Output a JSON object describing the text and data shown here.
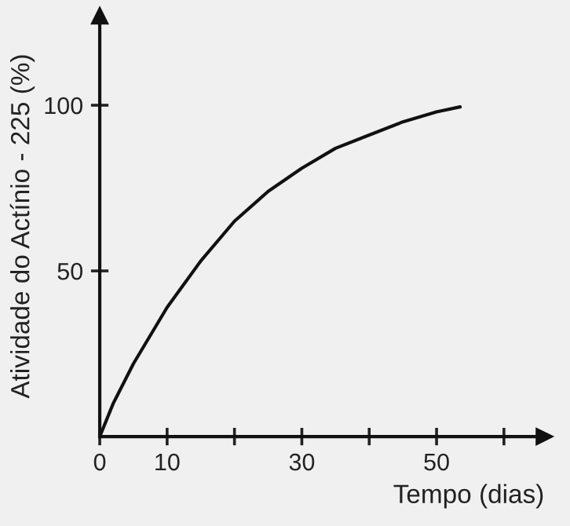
{
  "chart_data": {
    "type": "line",
    "xlabel": "Tempo (dias)",
    "ylabel": "Atividade do Actínio - 225 (%)",
    "x": [
      0,
      2,
      5,
      10,
      15,
      20,
      25,
      30,
      35,
      40,
      45,
      50,
      53.5
    ],
    "series": [
      {
        "color": "#111111",
        "values": [
          0,
          10,
          22,
          39,
          53,
          65,
          74,
          81,
          87,
          91,
          95,
          98,
          99.5
        ]
      }
    ],
    "xlim": [
      0,
      66
    ],
    "ylim": [
      0,
      127
    ],
    "xticks": [
      0,
      10,
      {
        "value": 20,
        "label": null
      },
      30,
      {
        "value": 40,
        "label": null
      },
      50,
      {
        "value": 60,
        "label": null
      }
    ],
    "yticks": [
      50,
      100
    ],
    "grid": false,
    "marker": "none",
    "line_style": "solid"
  }
}
